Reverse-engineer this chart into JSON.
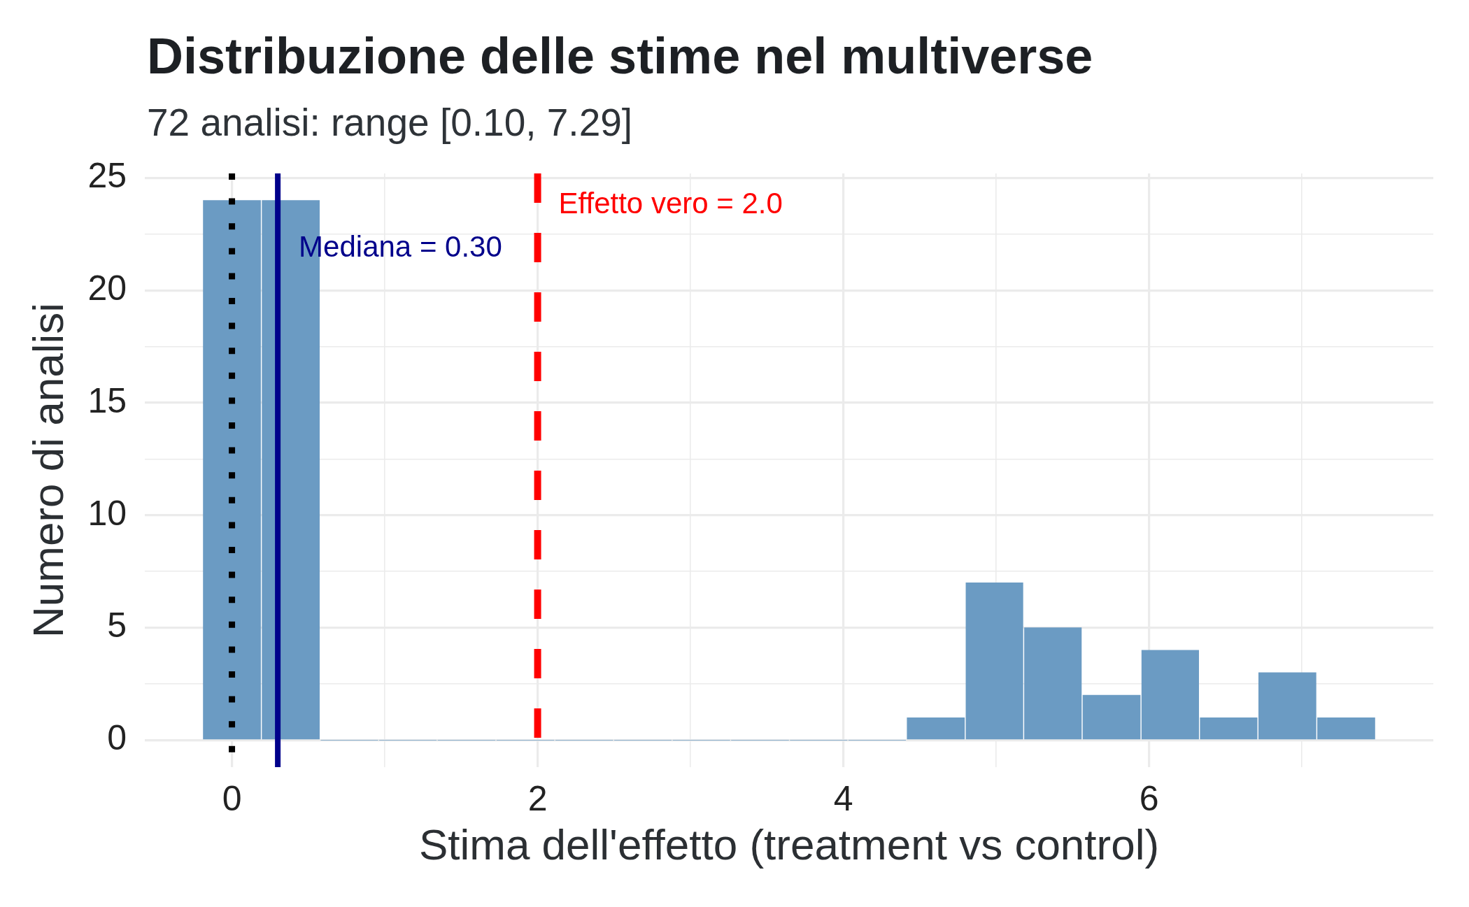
{
  "chart_data": {
    "type": "histogram",
    "title": "Distribuzione delle stime nel multiverse",
    "subtitle": "72 analisi: range [0.10, 7.29]",
    "xlabel": "Stima dell'effetto (treatment vs control)",
    "ylabel": "Numero di analisi",
    "bins": [
      -0.19,
      0.19,
      0.58,
      0.96,
      1.34,
      1.73,
      2.11,
      2.5,
      2.88,
      3.26,
      3.65,
      4.03,
      4.41,
      4.8,
      5.18,
      5.56,
      5.95,
      6.33,
      6.71,
      7.1,
      7.48
    ],
    "values": [
      24,
      24,
      0,
      0,
      0,
      0,
      0,
      0,
      0,
      0,
      0,
      0,
      1,
      7,
      5,
      2,
      4,
      1,
      3,
      1
    ],
    "color": "#6b9bc3",
    "xlim": [
      -0.57,
      7.86
    ],
    "xticks": [
      0,
      {
        "value": 1,
        "label": null
      },
      2,
      {
        "value": 3,
        "label": null
      },
      4,
      {
        "value": 5,
        "label": null
      },
      6,
      {
        "value": 7,
        "label": null
      }
    ],
    "ylim": [
      -1.2,
      25.2
    ],
    "yticks": [
      0,
      {
        "value": 2.5,
        "label": null
      },
      5,
      {
        "value": 7.5,
        "label": null
      },
      10,
      {
        "value": 12.5,
        "label": null
      },
      15,
      {
        "value": 17.5,
        "label": null
      },
      20,
      {
        "value": 22.5,
        "label": null
      },
      25
    ],
    "grid": true,
    "ref_lines": [
      {
        "axis": "x",
        "value": 0,
        "color": "#000000",
        "line_style": "dotted"
      },
      {
        "axis": "x",
        "value": 0.3,
        "label": "Mediana = 0.30",
        "color": "#00008b",
        "line_style": "solid"
      },
      {
        "axis": "x",
        "value": 2.0,
        "label": "Effetto vero = 2.0",
        "color": "#ff0000",
        "line_style": "dashed"
      }
    ]
  }
}
